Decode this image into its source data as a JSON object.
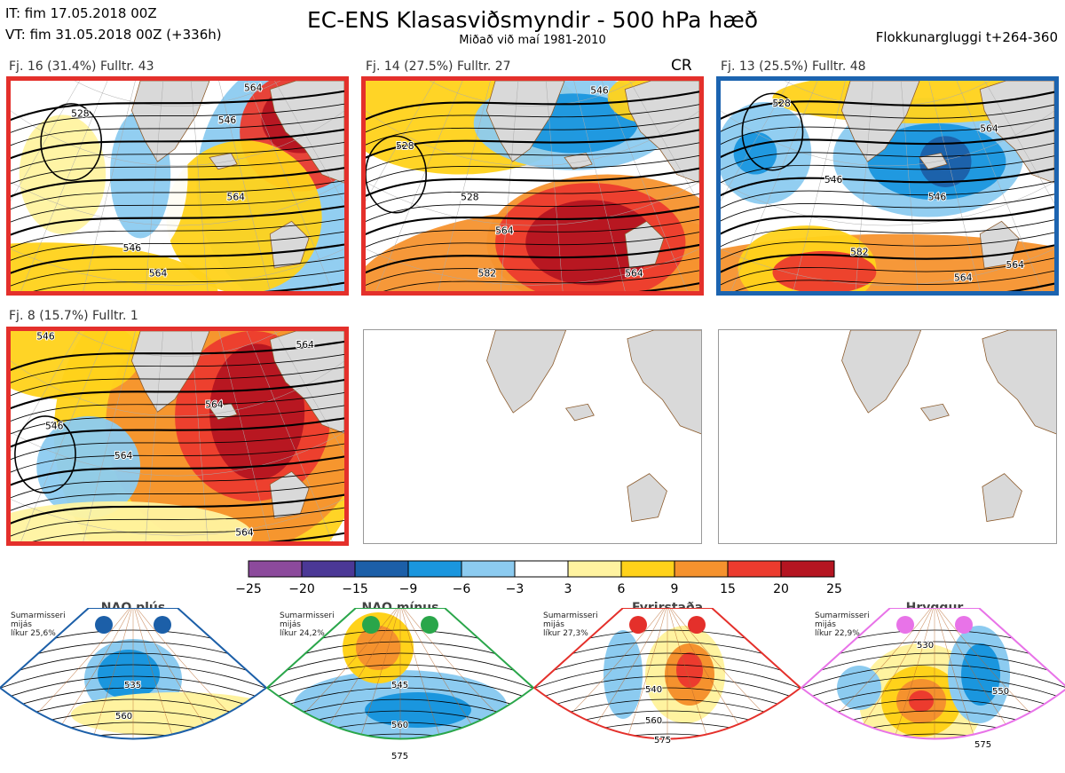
{
  "header": {
    "it": "IT: fim 17.05.2018 00Z",
    "vt": "VT: fim 31.05.2018 00Z  (+336h)",
    "title": "EC-ENS Klasasviðsmyndir - 500 hPa hæð",
    "subtitle": "Miðað við maí 1981-2010",
    "window": "Flokkunargluggi t+264-360"
  },
  "panels": [
    {
      "label": "Fj. 16 (31.4%)   Fulltr. 43",
      "frame_color": "#e4302b",
      "tag": "",
      "contours": [
        "528",
        "546",
        "564",
        "564",
        "546",
        "564"
      ]
    },
    {
      "label": "Fj. 14 (27.5%)   Fulltr. 27",
      "frame_color": "#e4302b",
      "tag": "CR",
      "contours": [
        "528",
        "528",
        "546",
        "564",
        "582",
        "564"
      ]
    },
    {
      "label": "Fj. 13 (25.5%)   Fulltr. 48",
      "frame_color": "#1c64b0",
      "tag": "",
      "contours": [
        "528",
        "546",
        "564",
        "546",
        "564",
        "582",
        "564"
      ]
    },
    {
      "label": "Fj. 8 (15.7%)   Fulltr. 1",
      "frame_color": "#e4302b",
      "tag": "",
      "contours": [
        "546",
        "564",
        "564",
        "546",
        "564",
        "564"
      ]
    }
  ],
  "colorbar": {
    "ticks": [
      "−25",
      "−20",
      "−15",
      "−9",
      "−6",
      "−3",
      "3",
      "6",
      "9",
      "15",
      "20",
      "25"
    ],
    "colors": [
      "#8c4a9c",
      "#4b3896",
      "#1c5fa8",
      "#1a96de",
      "#8ccbf0",
      "#ffffff",
      "#fff3a0",
      "#ffd21a",
      "#f5922e",
      "#ec3b2e",
      "#b51521"
    ]
  },
  "regimes": [
    {
      "name": "NAO plús",
      "info": [
        "Sumarmisseri",
        "mijás",
        "líkur 25,6%"
      ],
      "color": "#1c5fa8",
      "contours": [
        "535",
        "560"
      ]
    },
    {
      "name": "NAO mínus",
      "info": [
        "Sumarmisseri",
        "mijás",
        "líkur 24,2%"
      ],
      "color": "#2aa64a",
      "contours": [
        "545",
        "560",
        "575"
      ]
    },
    {
      "name": "Fyrirstaða",
      "info": [
        "Sumarmisseri",
        "mijás",
        "líkur 27,3%"
      ],
      "color": "#e4302b",
      "contours": [
        "540",
        "560",
        "575"
      ]
    },
    {
      "name": "Hryggur",
      "info": [
        "Sumarmisseri",
        "mijás",
        "líkur 22,9%"
      ],
      "color": "#e873e8",
      "contours": [
        "530",
        "550",
        "575"
      ]
    }
  ]
}
